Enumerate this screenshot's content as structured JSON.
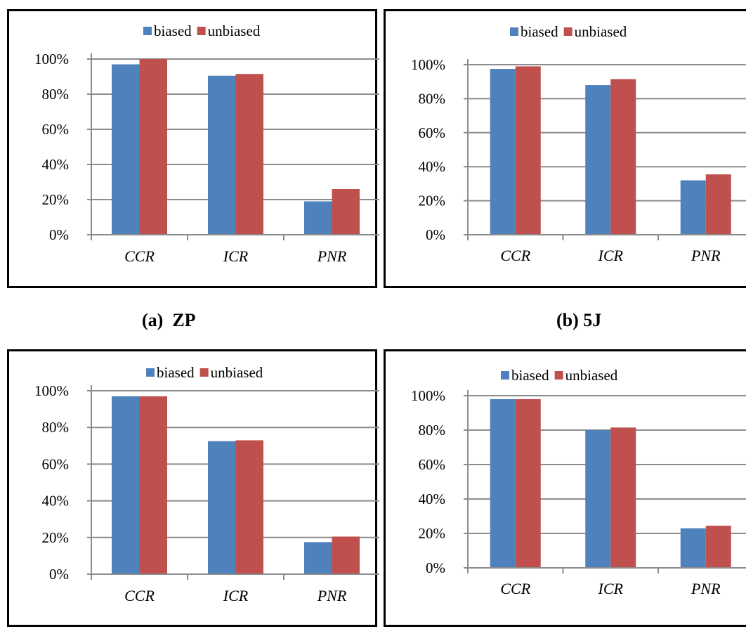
{
  "colors": {
    "biased": "#4f81bd",
    "unbiased": "#c0504d",
    "grid": "#8c8c8c"
  },
  "captions": {
    "a": "(a)  ZP",
    "b": "(b) 5J"
  },
  "chart_data": [
    {
      "type": "bar",
      "categories": [
        "CCR",
        "ICR",
        "PNR"
      ],
      "series": [
        {
          "name": "biased",
          "values": [
            97,
            90.5,
            19
          ]
        },
        {
          "name": "unbiased",
          "values": [
            100,
            91.5,
            26
          ]
        }
      ],
      "yticks": [
        "0%",
        "20%",
        "40%",
        "60%",
        "80%",
        "100%"
      ],
      "ylim": [
        0,
        100
      ],
      "grid": true,
      "legend": "top-center",
      "caption": "(a)  ZP"
    },
    {
      "type": "bar",
      "categories": [
        "CCR",
        "ICR",
        "PNR"
      ],
      "series": [
        {
          "name": "biased",
          "values": [
            97.5,
            88,
            32
          ]
        },
        {
          "name": "unbiased",
          "values": [
            99,
            91.5,
            35.5
          ]
        }
      ],
      "yticks": [
        "0%",
        "20%",
        "40%",
        "60%",
        "80%",
        "100%"
      ],
      "ylim": [
        0,
        100
      ],
      "grid": true,
      "legend": "top-center",
      "caption": "(b) 5J"
    },
    {
      "type": "bar",
      "categories": [
        "CCR",
        "ICR",
        "PNR"
      ],
      "series": [
        {
          "name": "biased",
          "values": [
            97,
            72.5,
            17.5
          ]
        },
        {
          "name": "unbiased",
          "values": [
            97,
            73,
            20.5
          ]
        }
      ],
      "yticks": [
        "0%",
        "20%",
        "40%",
        "60%",
        "80%",
        "100%"
      ],
      "ylim": [
        0,
        100
      ],
      "grid": true,
      "legend": "top-center"
    },
    {
      "type": "bar",
      "categories": [
        "CCR",
        "ICR",
        "PNR"
      ],
      "series": [
        {
          "name": "biased",
          "values": [
            98,
            80,
            23
          ]
        },
        {
          "name": "unbiased",
          "values": [
            98,
            81.5,
            24.5
          ]
        }
      ],
      "yticks": [
        "0%",
        "20%",
        "40%",
        "60%",
        "80%",
        "100%"
      ],
      "ylim": [
        0,
        100
      ],
      "grid": true,
      "legend": "top-center"
    }
  ]
}
